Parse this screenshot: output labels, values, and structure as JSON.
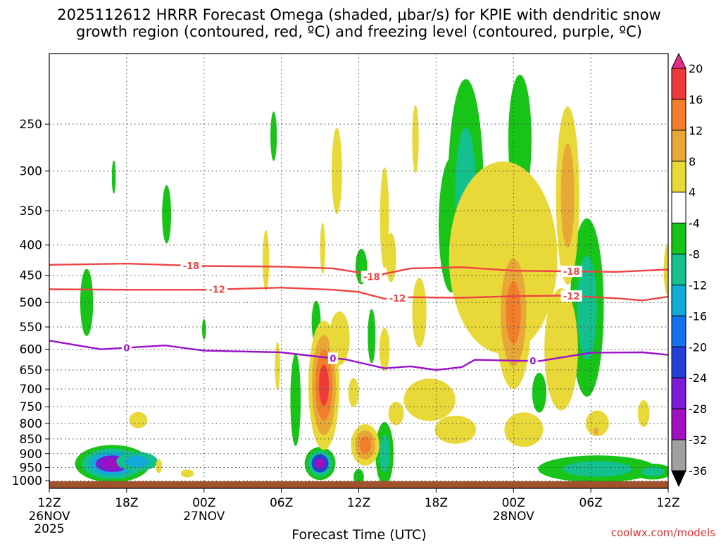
{
  "chart_data": {
    "type": "heatmap",
    "title_line1": "2025112612 HRRR Forecast Omega (shaded, μbar/s) for KPIE with dendritic snow",
    "title_line2": "growth region (contoured, red, ºC) and freezing level (contoured, purple, ºC)",
    "xlabel": "Forecast Time (UTC)",
    "watermark": "coolwx.com/models",
    "x_hours_range": [
      0,
      48
    ],
    "y_pressure_range": [
      1030,
      190
    ],
    "x_ticks": [
      {
        "h": 0,
        "label": "12Z",
        "date": "26NOV",
        "year": "2025"
      },
      {
        "h": 6,
        "label": "18Z"
      },
      {
        "h": 12,
        "label": "00Z",
        "date": "27NOV"
      },
      {
        "h": 18,
        "label": "06Z"
      },
      {
        "h": 24,
        "label": "12Z"
      },
      {
        "h": 30,
        "label": "18Z"
      },
      {
        "h": 36,
        "label": "00Z",
        "date": "28NOV"
      },
      {
        "h": 42,
        "label": "06Z"
      },
      {
        "h": 48,
        "label": "12Z"
      }
    ],
    "y_ticks": [
      {
        "p": 250,
        "label": "250"
      },
      {
        "p": 300,
        "label": "300"
      },
      {
        "p": 350,
        "label": "350"
      },
      {
        "p": 400,
        "label": "400"
      },
      {
        "p": 450,
        "label": "450"
      },
      {
        "p": 500,
        "label": "500"
      },
      {
        "p": 550,
        "label": "550"
      },
      {
        "p": 600,
        "label": "600"
      },
      {
        "p": 650,
        "label": "650"
      },
      {
        "p": 700,
        "label": "700"
      },
      {
        "p": 750,
        "label": "750"
      },
      {
        "p": 800,
        "label": "800"
      },
      {
        "p": 850,
        "label": "850"
      },
      {
        "p": 900,
        "label": "900"
      },
      {
        "p": 950,
        "label": "950"
      },
      {
        "p": 1000,
        "label": "1000"
      }
    ],
    "colorbar": {
      "labels": [
        "20",
        "16",
        "12",
        "8",
        "4",
        "-4",
        "-8",
        "-12",
        "-16",
        "-20",
        "-24",
        "-28",
        "-32",
        "-36"
      ],
      "colors": [
        "#e62c8a",
        "#ee3a3a",
        "#f07e2a",
        "#e8a838",
        "#e8d838",
        "#ffffff",
        "#17c417",
        "#13c08e",
        "#12aad8",
        "#1272f0",
        "#2240d8",
        "#7a1cd8",
        "#a010c0",
        "#a0a0a0",
        "#000000"
      ]
    },
    "omega_blobs": [
      {
        "h": 2.9,
        "p": 500,
        "rh": 0.5,
        "rp": 65,
        "levels": [
          "#17c417"
        ]
      },
      {
        "h": 4.9,
        "p": 936,
        "rh": 2.9,
        "rp": 68,
        "levels": [
          "#17c417",
          "#13c08e",
          "#12aad8",
          "#7a1cd8",
          "#a010c0"
        ]
      },
      {
        "h": 6.8,
        "p": 928,
        "rh": 1.6,
        "rp": 35,
        "levels": [
          "#13c08e",
          "#12aad8"
        ]
      },
      {
        "h": 5.0,
        "p": 307,
        "rh": 0.15,
        "rp": 20,
        "levels": [
          "#17c417"
        ]
      },
      {
        "h": 9.1,
        "p": 355,
        "rh": 0.35,
        "rp": 40,
        "levels": [
          "#17c417"
        ]
      },
      {
        "h": 12.0,
        "p": 555,
        "rh": 0.15,
        "rp": 22,
        "levels": [
          "#17c417"
        ]
      },
      {
        "h": 17.4,
        "p": 262,
        "rh": 0.25,
        "rp": 25,
        "levels": [
          "#17c417"
        ]
      },
      {
        "h": 19.1,
        "p": 730,
        "rh": 0.4,
        "rp": 130,
        "levels": [
          "#17c417"
        ]
      },
      {
        "h": 21.0,
        "p": 935,
        "rh": 1.2,
        "rp": 60,
        "levels": [
          "#17c417",
          "#13c08e",
          "#2240d8",
          "#a010c0"
        ]
      },
      {
        "h": 21.1,
        "p": 740,
        "rh": 0.35,
        "rp": 55,
        "levels": [
          "#17c417"
        ]
      },
      {
        "h": 20.7,
        "p": 540,
        "rh": 0.35,
        "rp": 45,
        "levels": [
          "#17c417"
        ]
      },
      {
        "h": 24.2,
        "p": 435,
        "rh": 0.45,
        "rp": 30,
        "levels": [
          "#17c417"
        ]
      },
      {
        "h": 25.0,
        "p": 570,
        "rh": 0.3,
        "rp": 60,
        "levels": [
          "#17c417"
        ]
      },
      {
        "h": 26.0,
        "p": 900,
        "rh": 0.7,
        "rp": 110,
        "levels": [
          "#17c417",
          "#13c08e"
        ]
      },
      {
        "h": 24.0,
        "p": 985,
        "rh": 0.4,
        "rp": 30,
        "levels": [
          "#17c417"
        ]
      },
      {
        "h": 31.2,
        "p": 370,
        "rh": 1.0,
        "rp": 95,
        "levels": [
          "#17c417"
        ]
      },
      {
        "h": 32.3,
        "p": 330,
        "rh": 1.4,
        "rp": 140,
        "levels": [
          "#17c417",
          "#13c08e"
        ]
      },
      {
        "h": 36.5,
        "p": 265,
        "rh": 0.9,
        "rp": 65,
        "levels": [
          "#17c417"
        ]
      },
      {
        "h": 38.0,
        "p": 710,
        "rh": 0.55,
        "rp": 55,
        "levels": [
          "#17c417"
        ]
      },
      {
        "h": 41.7,
        "p": 510,
        "rh": 1.3,
        "rp": 170,
        "levels": [
          "#17c417",
          "#13c08e"
        ]
      },
      {
        "h": 42.5,
        "p": 955,
        "rh": 4.6,
        "rp": 50,
        "levels": [
          "#17c417",
          "#13c08e"
        ]
      },
      {
        "h": 46.8,
        "p": 965,
        "rh": 1.5,
        "rp": 30,
        "levels": [
          "#17c417",
          "#13c08e"
        ]
      }
    ],
    "positive_blobs": [
      {
        "h": 16.8,
        "p": 425,
        "rh": 0.25,
        "rp": 50,
        "levels": [
          "#e8d838"
        ]
      },
      {
        "h": 17.7,
        "p": 640,
        "rh": 0.2,
        "rp": 60,
        "levels": [
          "#e8d838"
        ]
      },
      {
        "h": 10.7,
        "p": 972,
        "rh": 0.5,
        "rp": 15,
        "levels": [
          "#e8d838"
        ]
      },
      {
        "h": 8.5,
        "p": 945,
        "rh": 0.25,
        "rp": 25,
        "levels": [
          "#e8d838"
        ]
      },
      {
        "h": 6.9,
        "p": 790,
        "rh": 0.7,
        "rp": 25,
        "levels": [
          "#e8d838"
        ]
      },
      {
        "h": 21.3,
        "p": 690,
        "rh": 1.2,
        "rp": 170,
        "levels": [
          "#e8d838",
          "#e8a838",
          "#f07e2a",
          "#ee3a3a"
        ]
      },
      {
        "h": 22.5,
        "p": 575,
        "rh": 0.8,
        "rp": 60,
        "levels": [
          "#e8d838"
        ]
      },
      {
        "h": 22.3,
        "p": 300,
        "rh": 0.4,
        "rp": 50,
        "levels": [
          "#e8d838"
        ]
      },
      {
        "h": 21.2,
        "p": 405,
        "rh": 0.2,
        "rp": 40,
        "levels": [
          "#e8d838"
        ]
      },
      {
        "h": 23.6,
        "p": 710,
        "rh": 0.4,
        "rp": 40,
        "levels": [
          "#e8d838"
        ]
      },
      {
        "h": 24.5,
        "p": 870,
        "rh": 1.1,
        "rp": 70,
        "levels": [
          "#e8d838",
          "#e8a838",
          "#f07e2a"
        ]
      },
      {
        "h": 26.0,
        "p": 600,
        "rh": 0.4,
        "rp": 50,
        "levels": [
          "#e8d838"
        ]
      },
      {
        "h": 26.9,
        "p": 770,
        "rh": 0.6,
        "rp": 35,
        "levels": [
          "#e8d838"
        ]
      },
      {
        "h": 26.0,
        "p": 360,
        "rh": 0.35,
        "rp": 70,
        "levels": [
          "#e8d838"
        ]
      },
      {
        "h": 26.5,
        "p": 420,
        "rh": 0.4,
        "rp": 40,
        "levels": [
          "#e8d838"
        ]
      },
      {
        "h": 28.7,
        "p": 520,
        "rh": 0.55,
        "rp": 70,
        "levels": [
          "#e8d838"
        ]
      },
      {
        "h": 28.4,
        "p": 265,
        "rh": 0.25,
        "rp": 35,
        "levels": [
          "#e8d838"
        ]
      },
      {
        "h": 29.5,
        "p": 730,
        "rh": 2.0,
        "rp": 60,
        "levels": [
          "#e8d838"
        ]
      },
      {
        "h": 31.5,
        "p": 820,
        "rh": 1.6,
        "rp": 45,
        "levels": [
          "#e8d838"
        ]
      },
      {
        "h": 35.2,
        "p": 420,
        "rh": 4.2,
        "rp": 150,
        "levels": [
          "#e8d838"
        ]
      },
      {
        "h": 36.0,
        "p": 520,
        "rh": 1.4,
        "rp": 150,
        "levels": [
          "#e8d838",
          "#e8a838",
          "#f07e2a"
        ]
      },
      {
        "h": 40.2,
        "p": 330,
        "rh": 0.9,
        "rp": 110,
        "levels": [
          "#e8d838",
          "#e8a838"
        ]
      },
      {
        "h": 39.7,
        "p": 600,
        "rh": 1.3,
        "rp": 140,
        "levels": [
          "#e8d838"
        ]
      },
      {
        "h": 36.8,
        "p": 820,
        "rh": 1.5,
        "rp": 55,
        "levels": [
          "#e8d838"
        ]
      },
      {
        "h": 42.5,
        "p": 800,
        "rh": 0.9,
        "rp": 40,
        "levels": [
          "#e8d838"
        ]
      },
      {
        "h": 42.4,
        "p": 825,
        "rh": 0.2,
        "rp": 12,
        "levels": [
          "#e8a838"
        ]
      },
      {
        "h": 46.1,
        "p": 770,
        "rh": 0.45,
        "rp": 40,
        "levels": [
          "#e8d838"
        ]
      },
      {
        "h": 48.0,
        "p": 440,
        "rh": 0.35,
        "rp": 45,
        "levels": [
          "#e8d838"
        ]
      }
    ],
    "contours": [
      {
        "name": "-18",
        "color": "#ee4444",
        "label": "-18",
        "label_h": [
          11,
          25,
          40.5
        ],
        "points": [
          [
            0,
            432
          ],
          [
            6,
            430
          ],
          [
            12,
            434
          ],
          [
            18,
            435
          ],
          [
            22,
            438
          ],
          [
            24,
            445
          ],
          [
            25,
            452
          ],
          [
            28,
            438
          ],
          [
            32,
            436
          ],
          [
            36,
            442
          ],
          [
            40,
            443
          ],
          [
            44,
            444
          ],
          [
            48,
            440
          ]
        ]
      },
      {
        "name": "-12",
        "color": "#ee4444",
        "label": "-12",
        "label_h": [
          13,
          27,
          40.5
        ],
        "points": [
          [
            0,
            475
          ],
          [
            6,
            476
          ],
          [
            12,
            476
          ],
          [
            18,
            472
          ],
          [
            22,
            476
          ],
          [
            24,
            480
          ],
          [
            26,
            493
          ],
          [
            28,
            490
          ],
          [
            32,
            491
          ],
          [
            36,
            488
          ],
          [
            40,
            487
          ],
          [
            44,
            492
          ],
          [
            46,
            496
          ],
          [
            48,
            489
          ]
        ]
      },
      {
        "name": "0",
        "color": "#9a12c8",
        "label": "0",
        "label_h": [
          6,
          22,
          37.5
        ],
        "points": [
          [
            0,
            580
          ],
          [
            4,
            600
          ],
          [
            9,
            591
          ],
          [
            12,
            603
          ],
          [
            18,
            607
          ],
          [
            21,
            618
          ],
          [
            23,
            624
          ],
          [
            26,
            646
          ],
          [
            28,
            641
          ],
          [
            30,
            650
          ],
          [
            32,
            643
          ],
          [
            33,
            625
          ],
          [
            36,
            627
          ],
          [
            38,
            628
          ],
          [
            42,
            608
          ],
          [
            46,
            607
          ],
          [
            48,
            613
          ]
        ]
      }
    ]
  }
}
